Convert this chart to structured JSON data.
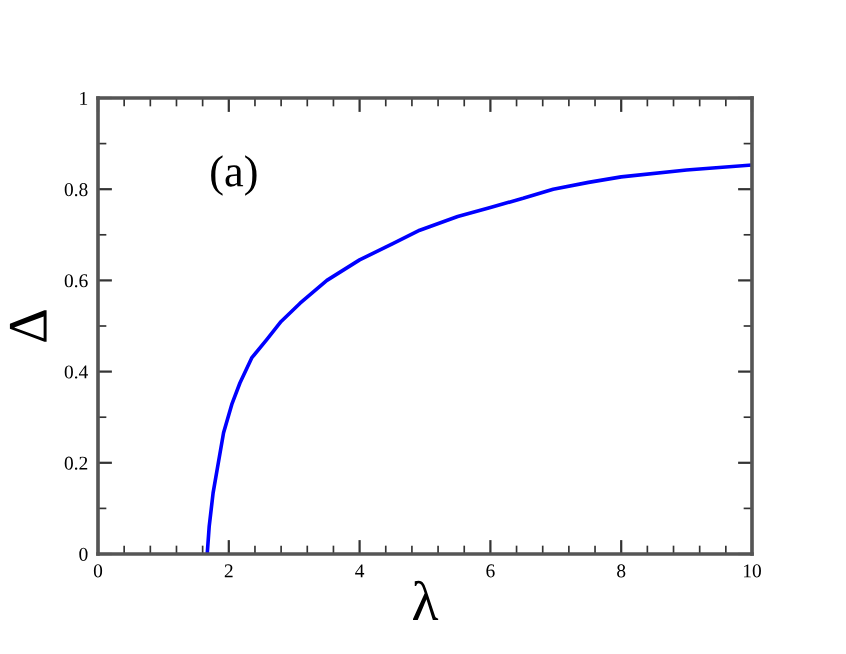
{
  "chart_data": {
    "type": "line",
    "xlabel": "λ",
    "ylabel": "Δ",
    "annotations": [
      "(a)"
    ],
    "x": [
      1.67,
      1.7,
      1.76,
      1.84,
      1.92,
      2.05,
      2.17,
      2.35,
      2.58,
      2.8,
      3.09,
      3.5,
      4.0,
      4.5,
      4.92,
      5.5,
      6.0,
      6.5,
      6.96,
      7.5,
      8.0,
      9.0,
      10.0
    ],
    "series": [
      {
        "color": "#0000ff",
        "values": [
          0,
          0.06,
          0.134,
          0.2,
          0.266,
          0.33,
          0.375,
          0.43,
          0.47,
          0.51,
          0.55,
          0.6,
          0.645,
          0.68,
          0.71,
          0.74,
          0.76,
          0.78,
          0.8,
          0.815,
          0.827,
          0.842,
          0.853
        ]
      }
    ],
    "xlim": [
      0,
      10
    ],
    "ylim": [
      0,
      1
    ],
    "xticks": [
      0,
      2,
      4,
      6,
      8,
      10
    ],
    "yticks": [
      0,
      0.2,
      0.4,
      0.6,
      0.8,
      1
    ],
    "grid": false,
    "legend": false,
    "marker": "none",
    "line_style": "solid"
  }
}
